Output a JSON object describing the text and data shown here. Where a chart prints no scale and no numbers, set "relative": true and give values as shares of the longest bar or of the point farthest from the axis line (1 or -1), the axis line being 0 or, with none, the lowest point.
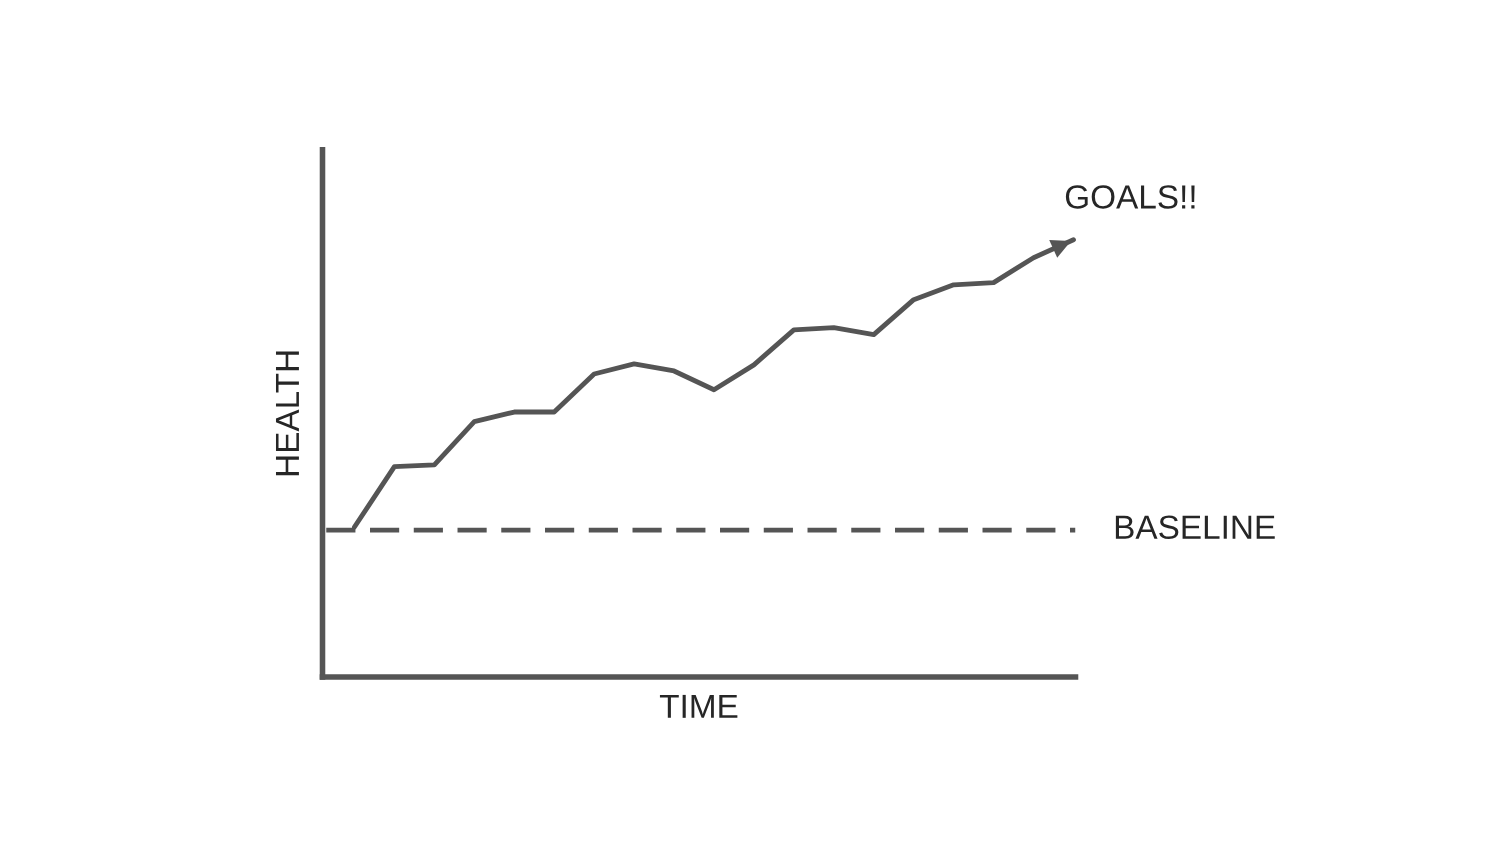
{
  "chart_data": {
    "type": "line",
    "relative": true,
    "xlabel": "TIME",
    "ylabel": "HEALTH",
    "tick_labels": false,
    "legend": false,
    "marker": "none",
    "line_style": "solid",
    "categories": [
      null,
      null,
      null,
      null,
      null,
      null,
      null,
      null,
      null,
      null,
      null,
      null,
      null,
      null,
      null,
      null,
      null,
      null,
      null
    ],
    "series": [
      {
        "color": "#555555",
        "values": [
          0.343,
          0.481,
          0.485,
          0.584,
          0.606,
          0.606,
          0.693,
          0.716,
          0.7,
          0.657,
          0.714,
          0.794,
          0.799,
          0.783,
          0.863,
          0.897,
          0.902,
          0.959,
          1.0
        ]
      }
    ],
    "ref_lines": [
      {
        "axis": "y",
        "value": 0.336,
        "label": "BASELINE",
        "color": "#555555",
        "line_style": "dashed"
      }
    ],
    "annotations": [
      "GOALS!!"
    ]
  }
}
